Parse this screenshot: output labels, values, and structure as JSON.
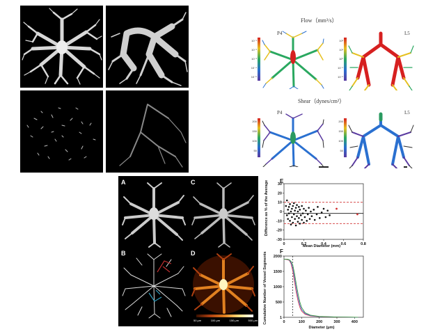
{
  "top_right": {
    "flow_title": "Flow（mm³/s）",
    "shear_title": "Shear（dynes/cm²）",
    "left_label": "P4",
    "right_label": "L5",
    "flow_left_ticks": [
      "10⁻¹",
      "10⁻²",
      "10⁻³",
      "10⁻⁴",
      "10⁻⁵"
    ],
    "flow_right_ticks": [
      "10²",
      "10¹",
      "10⁰",
      "10⁻¹",
      "10⁻²"
    ],
    "shear_left_ticks": [
      "200",
      "150",
      "100",
      "50"
    ],
    "shear_right_ticks": [
      "200",
      "150",
      "100",
      "50"
    ]
  },
  "bottom": {
    "panel_labels": [
      "A",
      "B",
      "C",
      "D",
      "E",
      "F"
    ],
    "scale_bar_ticks": [
      "50 μm",
      "100 μm",
      "150 μm",
      "500 μm"
    ]
  },
  "colors": {
    "flow_high": "#d62020",
    "flow_mid": "#e6c020",
    "flow_low": "#2aa860",
    "shear_high": "#2a9a60",
    "shear_low": "#5a3aa0",
    "series": [
      "#e05050",
      "#5050d0",
      "#40a040"
    ]
  },
  "chart_data": [
    {
      "type": "scatter",
      "panel": "E",
      "xlabel": "Mean Diameter (mm)",
      "ylabel": "Difference as % of the Average",
      "xlim": [
        0,
        0.8
      ],
      "ylim": [
        -30,
        30
      ],
      "x_ticks": [
        "0",
        "0.2",
        "0.4",
        "0.6",
        "0.8"
      ],
      "y_ticks": [
        "30",
        "20",
        "10",
        "0",
        "-10",
        "-20",
        "-30"
      ],
      "mean_line": -2,
      "limit_lines": [
        10,
        -13
      ],
      "points": [
        [
          0.02,
          6
        ],
        [
          0.03,
          -4
        ],
        [
          0.03,
          12
        ],
        [
          0.04,
          2
        ],
        [
          0.04,
          -8
        ],
        [
          0.05,
          5
        ],
        [
          0.05,
          -2
        ],
        [
          0.06,
          -10
        ],
        [
          0.06,
          8
        ],
        [
          0.07,
          0
        ],
        [
          0.07,
          -14
        ],
        [
          0.08,
          3
        ],
        [
          0.08,
          -6
        ],
        [
          0.09,
          6
        ],
        [
          0.09,
          -12
        ],
        [
          0.1,
          -3
        ],
        [
          0.1,
          9
        ],
        [
          0.11,
          1
        ],
        [
          0.11,
          -8
        ],
        [
          0.12,
          -15
        ],
        [
          0.12,
          4
        ],
        [
          0.13,
          -5
        ],
        [
          0.13,
          7
        ],
        [
          0.14,
          -11
        ],
        [
          0.14,
          0
        ],
        [
          0.15,
          -7
        ],
        [
          0.15,
          5
        ],
        [
          0.16,
          -13
        ],
        [
          0.16,
          2
        ],
        [
          0.17,
          -4
        ],
        [
          0.18,
          -9
        ],
        [
          0.18,
          6
        ],
        [
          0.19,
          -2
        ],
        [
          0.2,
          -12
        ],
        [
          0.2,
          3
        ],
        [
          0.21,
          -6
        ],
        [
          0.22,
          1
        ],
        [
          0.23,
          -10
        ],
        [
          0.24,
          -3
        ],
        [
          0.25,
          4
        ],
        [
          0.26,
          -8
        ],
        [
          0.27,
          0
        ],
        [
          0.28,
          -5
        ],
        [
          0.3,
          2
        ],
        [
          0.31,
          -9
        ],
        [
          0.33,
          -3
        ],
        [
          0.34,
          5
        ],
        [
          0.36,
          -7
        ],
        [
          0.38,
          -1
        ],
        [
          0.4,
          3
        ],
        [
          0.42,
          -6
        ],
        [
          0.44,
          1
        ],
        [
          0.46,
          -4
        ]
      ],
      "outlier_points": [
        [
          0.53,
          3
        ],
        [
          0.74,
          -3
        ]
      ]
    },
    {
      "type": "line",
      "panel": "F",
      "xlabel": "Diameter (μm)",
      "ylabel": "Cumulative Number of Vessel Segments",
      "xlim": [
        0,
        450
      ],
      "ylim": [
        0,
        2000
      ],
      "x_ticks": [
        "0",
        "100",
        "200",
        "300",
        "400"
      ],
      "y_ticks": [
        "2000",
        "1500",
        "1000",
        "500",
        "1"
      ],
      "ref_line_x": 50,
      "series": [
        {
          "x": [
            0,
            20,
            30,
            40,
            50,
            60,
            70,
            80,
            90,
            100,
            120,
            150,
            200,
            300,
            420
          ],
          "values": [
            1900,
            1880,
            1860,
            1750,
            1500,
            1150,
            800,
            520,
            320,
            200,
            95,
            45,
            20,
            6,
            1
          ]
        },
        {
          "x": [
            0,
            20,
            30,
            40,
            50,
            60,
            70,
            80,
            90,
            100,
            120,
            150,
            200,
            300,
            420
          ],
          "values": [
            1900,
            1890,
            1870,
            1790,
            1600,
            1280,
            930,
            620,
            400,
            250,
            120,
            55,
            24,
            8,
            1
          ]
        },
        {
          "x": [
            0,
            20,
            30,
            40,
            50,
            60,
            70,
            80,
            90,
            100,
            120,
            150,
            200,
            300,
            420
          ],
          "values": [
            1900,
            1895,
            1880,
            1830,
            1700,
            1420,
            1080,
            760,
            500,
            320,
            150,
            70,
            30,
            10,
            2
          ]
        }
      ]
    }
  ]
}
